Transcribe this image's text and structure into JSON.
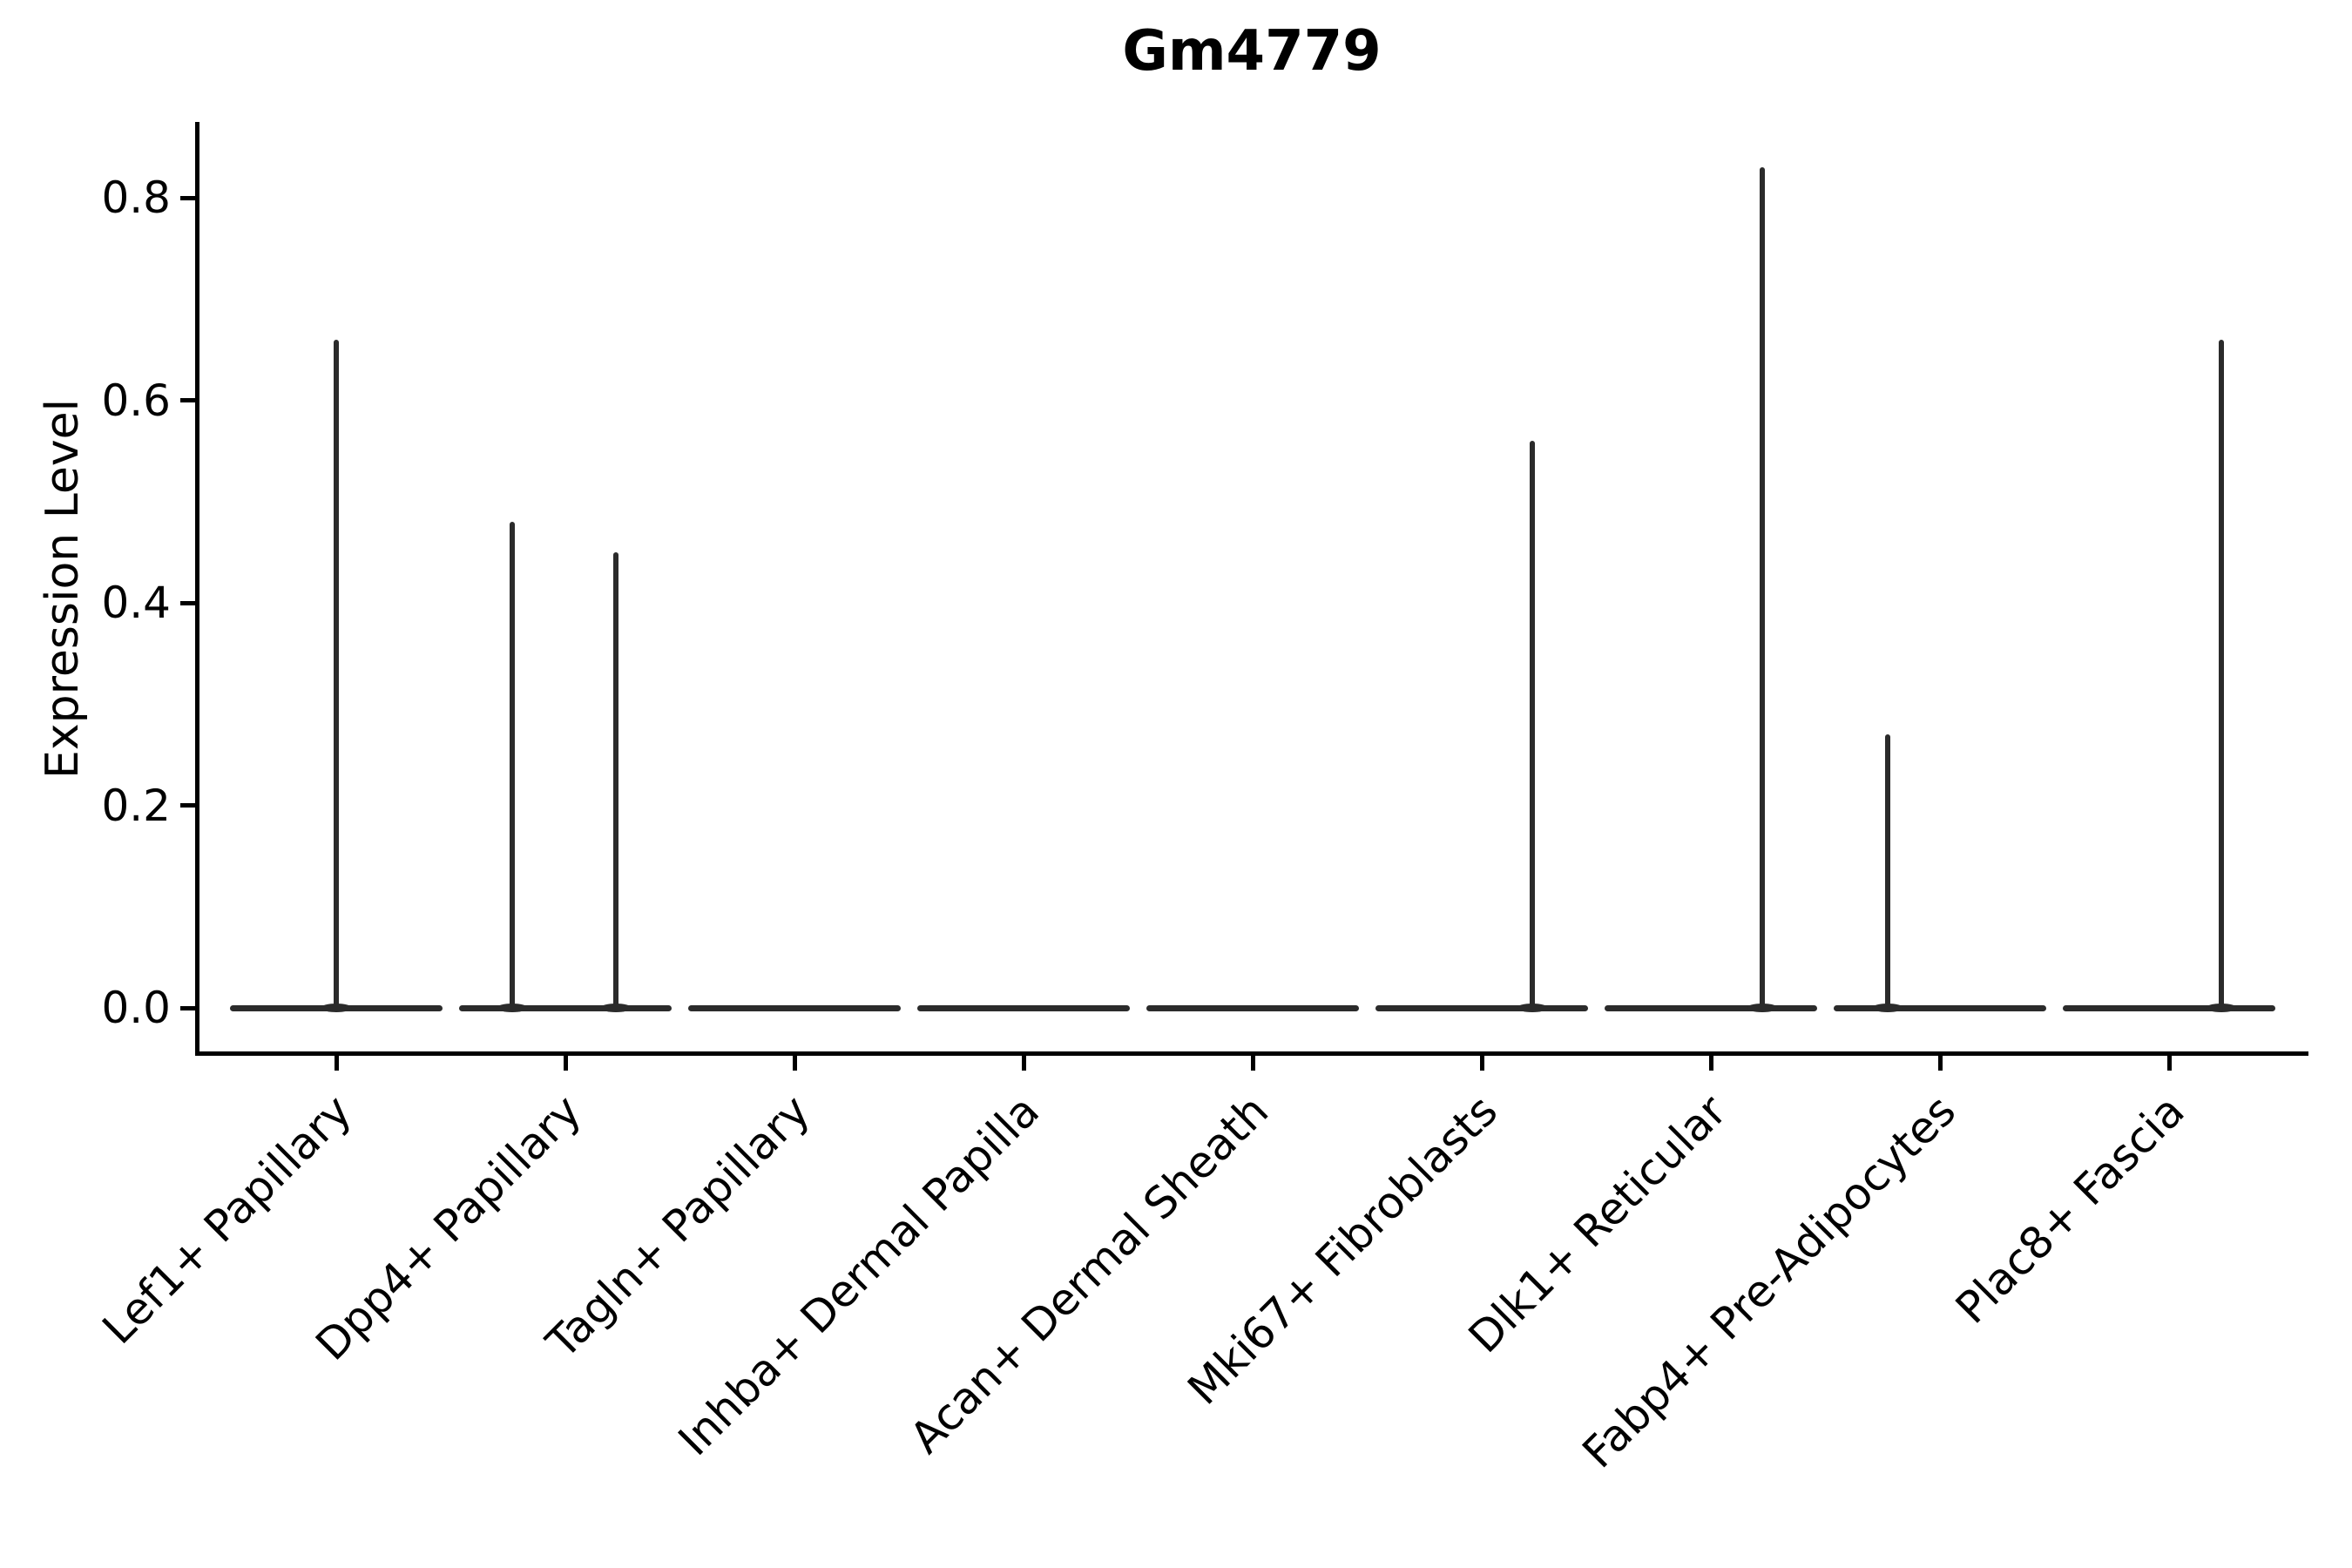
{
  "figure": {
    "title": "Gm4779",
    "y_axis": {
      "label": "Expression Level",
      "tick_labels": [
        "0.0",
        "0.2",
        "0.4",
        "0.6",
        "0.8"
      ]
    },
    "x_axis": {
      "tick_labels": [
        "Lef1+ Papillary",
        "Dpp4+ Papillary",
        "Tagln+ Papillary",
        "Inhba+ Dermal Papilla",
        "Acan+ Dermal Sheath",
        "Mki67+ Fibroblasts",
        "Dlk1+ Reticular",
        "Fabp4+ Pre-Adipocytes",
        "Plac8+ Fascia"
      ]
    }
  },
  "chart_data": {
    "type": "violin",
    "title": "Gm4779",
    "xlabel": "",
    "ylabel": "Expression Level",
    "categories": [
      "Lef1+ Papillary",
      "Dpp4+ Papillary",
      "Tagln+ Papillary",
      "Inhba+ Dermal Papilla",
      "Acan+ Dermal Sheath",
      "Mki67+ Fibroblasts",
      "Dlk1+ Reticular",
      "Fabp4+ Pre-Adipocytes",
      "Plac8+ Fascia"
    ],
    "yticks": [
      0.0,
      0.2,
      0.4,
      0.6,
      0.8
    ],
    "ytick_labels": [
      "0.0",
      "0.2",
      "0.4",
      "0.6",
      "0.8"
    ],
    "ylim": [
      -0.05,
      0.87
    ],
    "grid": false,
    "legend": null,
    "description": "Violin plot of Gm4779 expression; each violin is a flat density line at 0 with thin vertical density spikes reaching the maximum expressed values.",
    "violins": [
      {
        "category": "Lef1+ Papillary",
        "body_value": 0.0,
        "spikes": [
          {
            "value": 0.66,
            "offset_frac": 0.0
          }
        ]
      },
      {
        "category": "Dpp4+ Papillary",
        "body_value": 0.0,
        "spikes": [
          {
            "value": 0.48,
            "offset_frac": -0.232
          },
          {
            "value": 0.45,
            "offset_frac": 0.221
          }
        ]
      },
      {
        "category": "Tagln+ Papillary",
        "body_value": 0.0,
        "spikes": []
      },
      {
        "category": "Inhba+ Dermal Papilla",
        "body_value": 0.0,
        "spikes": []
      },
      {
        "category": "Acan+ Dermal Sheath",
        "body_value": 0.0,
        "spikes": []
      },
      {
        "category": "Mki67+ Fibroblasts",
        "body_value": 0.0,
        "spikes": [
          {
            "value": 0.56,
            "offset_frac": 0.221
          }
        ]
      },
      {
        "category": "Dlk1+ Reticular",
        "body_value": 0.0,
        "spikes": [
          {
            "value": 0.83,
            "offset_frac": 0.224
          }
        ]
      },
      {
        "category": "Fabp4+ Pre-Adipocytes",
        "body_value": 0.0,
        "spikes": [
          {
            "value": 0.27,
            "offset_frac": -0.228
          }
        ]
      },
      {
        "category": "Plac8+ Fascia",
        "body_value": 0.0,
        "spikes": [
          {
            "value": 0.66,
            "offset_frac": 0.228
          }
        ]
      }
    ],
    "style": {
      "line_color": "#2b2b2b",
      "axis_color": "#000000",
      "background": "#ffffff"
    }
  }
}
